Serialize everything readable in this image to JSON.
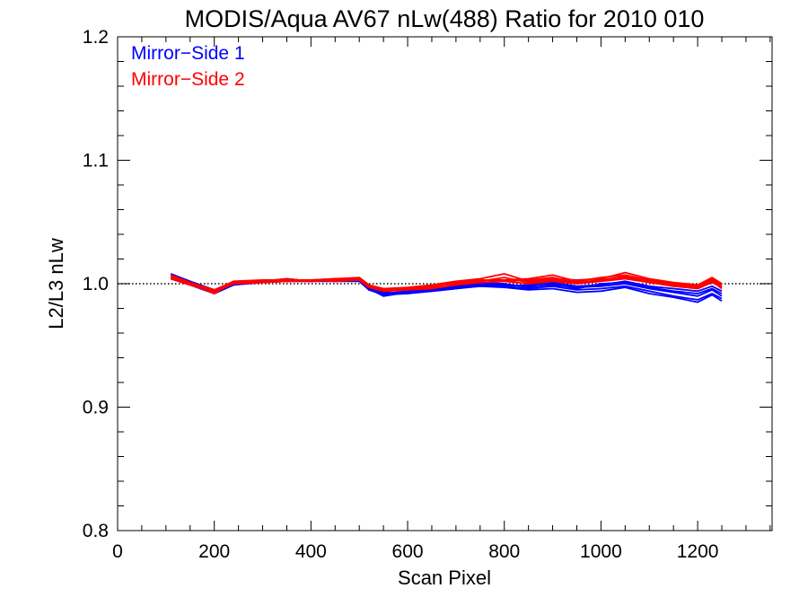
{
  "chart_data": {
    "type": "line",
    "title": "MODIS/Aqua AV67 nLw(488) Ratio for 2010 010",
    "xlabel": "Scan Pixel",
    "ylabel": "L2/L3 nLw",
    "xlim": [
      0,
      1354
    ],
    "ylim": [
      0.8,
      1.2
    ],
    "x_ticks": [
      0,
      200,
      400,
      600,
      800,
      1000,
      1200
    ],
    "x_tick_labels": [
      "0",
      "200",
      "400",
      "600",
      "800",
      "1000",
      "1200"
    ],
    "y_ticks": [
      0.8,
      0.9,
      1.0,
      1.1,
      1.2
    ],
    "y_tick_labels": [
      "0.8",
      "0.9",
      "1.0",
      "1.1",
      "1.2"
    ],
    "reference_line": {
      "y": 1.0,
      "style": "dotted",
      "color": "#000000"
    },
    "legend": {
      "placement": "top-left",
      "entries": [
        {
          "label": "Mirror−Side 1",
          "color": "#0000ff"
        },
        {
          "label": "Mirror−Side 2",
          "color": "#ff0000"
        }
      ]
    },
    "x": [
      110,
      150,
      200,
      240,
      300,
      350,
      400,
      450,
      500,
      520,
      550,
      600,
      650,
      700,
      750,
      800,
      850,
      900,
      950,
      1000,
      1050,
      1100,
      1150,
      1200,
      1230,
      1250
    ],
    "series": [
      {
        "group": "Mirror−Side 1",
        "color": "#0000ff",
        "values": [
          1.007,
          1.001,
          0.993,
          1.0,
          1.002,
          1.003,
          1.002,
          1.003,
          1.003,
          0.996,
          0.991,
          0.993,
          0.994,
          0.996,
          0.998,
          0.997,
          0.995,
          0.996,
          0.993,
          0.994,
          0.997,
          0.992,
          0.989,
          0.985,
          0.991,
          0.986
        ]
      },
      {
        "group": "Mirror−Side 1",
        "color": "#0000ff",
        "values": [
          1.005,
          1.0,
          0.994,
          0.999,
          1.001,
          1.002,
          1.003,
          1.002,
          1.002,
          0.995,
          0.992,
          0.994,
          0.995,
          0.997,
          0.999,
          0.998,
          0.996,
          0.998,
          0.995,
          0.996,
          0.998,
          0.994,
          0.99,
          0.987,
          0.992,
          0.988
        ]
      },
      {
        "group": "Mirror−Side 1",
        "color": "#0000ff",
        "values": [
          1.008,
          1.002,
          0.995,
          1.001,
          1.002,
          1.004,
          1.002,
          1.004,
          1.003,
          0.997,
          0.993,
          0.992,
          0.996,
          0.998,
          1.0,
          0.999,
          0.998,
          0.999,
          0.997,
          0.998,
          1.0,
          0.996,
          0.993,
          0.99,
          0.995,
          0.99
        ]
      },
      {
        "group": "Mirror−Side 1",
        "color": "#0000ff",
        "values": [
          1.006,
          1.001,
          0.993,
          1.0,
          1.001,
          1.003,
          1.003,
          1.003,
          1.004,
          0.996,
          0.99,
          0.993,
          0.995,
          0.999,
          1.001,
          1.0,
          0.997,
          1.0,
          0.996,
          1.0,
          1.001,
          0.997,
          0.994,
          0.992,
          0.996,
          0.992
        ]
      },
      {
        "group": "Mirror−Side 1",
        "color": "#0000ff",
        "values": [
          1.004,
          0.999,
          0.992,
          0.999,
          1.002,
          1.002,
          1.002,
          1.002,
          1.003,
          0.995,
          0.991,
          0.992,
          0.994,
          0.996,
          0.999,
          0.998,
          0.999,
          1.001,
          0.998,
          0.999,
          1.002,
          0.998,
          0.996,
          0.994,
          0.998,
          0.994
        ]
      },
      {
        "group": "Mirror−Side 2",
        "color": "#ff0000",
        "values": [
          1.006,
          1.0,
          0.994,
          1.001,
          1.002,
          1.003,
          1.003,
          1.004,
          1.004,
          0.998,
          0.994,
          0.995,
          0.997,
          1.001,
          1.003,
          1.002,
          1.0,
          1.002,
          1.0,
          1.002,
          1.004,
          1.001,
          0.998,
          0.996,
          1.001,
          0.997
        ]
      },
      {
        "group": "Mirror−Side 2",
        "color": "#ff0000",
        "values": [
          1.005,
          0.999,
          0.993,
          1.0,
          1.001,
          1.002,
          1.002,
          1.003,
          1.003,
          0.997,
          0.995,
          0.996,
          0.998,
          1.0,
          1.002,
          1.005,
          1.001,
          1.003,
          1.001,
          1.003,
          1.006,
          1.002,
          0.999,
          0.997,
          1.003,
          0.998
        ]
      },
      {
        "group": "Mirror−Side 2",
        "color": "#ff0000",
        "values": [
          1.007,
          1.001,
          0.995,
          1.002,
          1.003,
          1.003,
          1.003,
          1.004,
          1.005,
          0.999,
          0.996,
          0.997,
          0.999,
          1.002,
          1.004,
          1.008,
          1.002,
          1.004,
          1.003,
          1.004,
          1.009,
          1.004,
          1.001,
          0.999,
          1.005,
          1.0
        ]
      },
      {
        "group": "Mirror−Side 2",
        "color": "#ff0000",
        "values": [
          1.006,
          1.0,
          0.992,
          1.001,
          1.002,
          1.004,
          1.002,
          1.003,
          1.004,
          0.998,
          0.995,
          0.996,
          0.997,
          1.001,
          1.003,
          1.003,
          1.004,
          1.007,
          1.002,
          1.005,
          1.007,
          1.003,
          1.0,
          0.998,
          1.004,
          0.999
        ]
      },
      {
        "group": "Mirror−Side 2",
        "color": "#ff0000",
        "values": [
          1.004,
          0.999,
          0.994,
          1.0,
          1.001,
          1.002,
          1.003,
          1.002,
          1.003,
          0.997,
          0.994,
          0.995,
          0.996,
          0.999,
          1.001,
          1.002,
          1.003,
          1.005,
          1.001,
          1.003,
          1.005,
          1.002,
          0.999,
          0.997,
          1.002,
          0.996
        ]
      }
    ]
  }
}
